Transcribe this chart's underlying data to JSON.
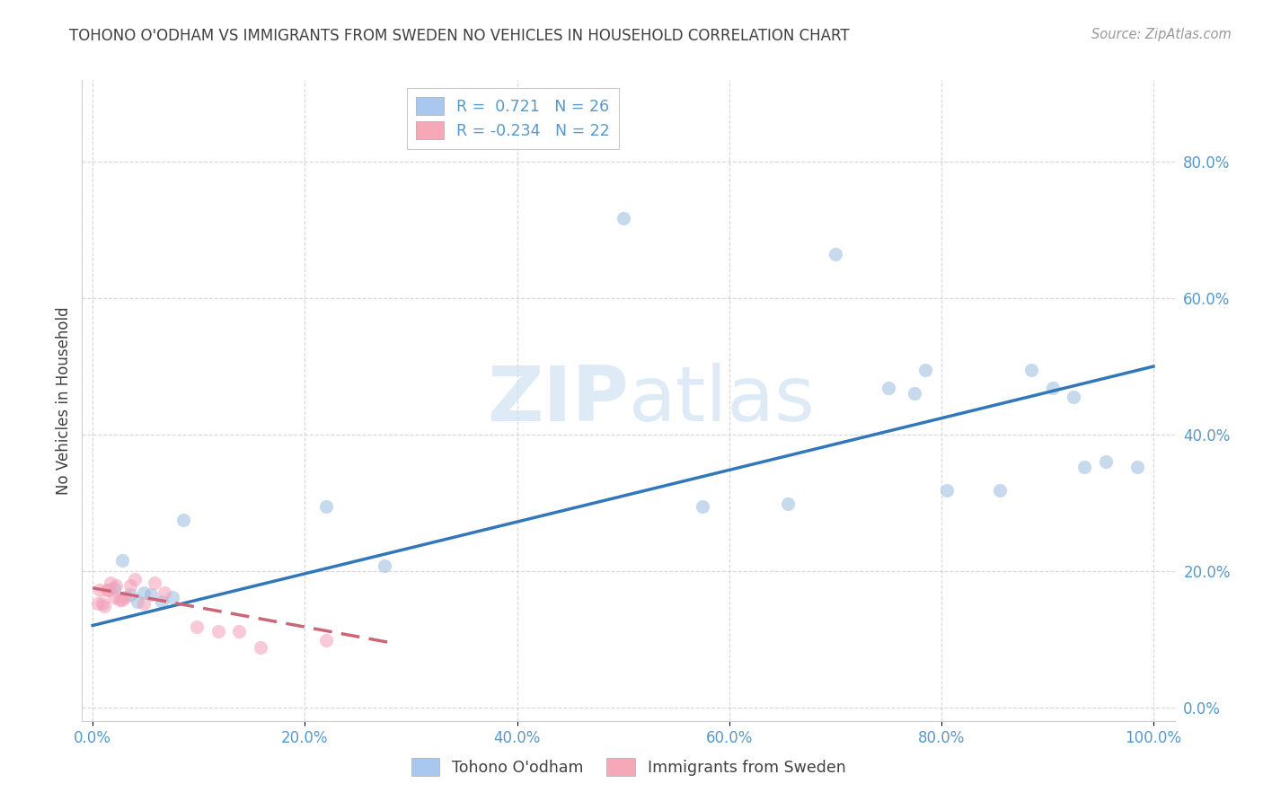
{
  "title": "TOHONO O'ODHAM VS IMMIGRANTS FROM SWEDEN NO VEHICLES IN HOUSEHOLD CORRELATION CHART",
  "source": "Source: ZipAtlas.com",
  "ylabel": "No Vehicles in Household",
  "xlabel": "",
  "xlim": [
    -0.01,
    1.02
  ],
  "ylim": [
    -0.02,
    0.92
  ],
  "yticks": [
    0.0,
    0.2,
    0.4,
    0.6,
    0.8
  ],
  "ytick_labels": [
    "0.0%",
    "20.0%",
    "40.0%",
    "60.0%",
    "80.0%"
  ],
  "xticks": [
    0.0,
    0.2,
    0.4,
    0.6,
    0.8,
    1.0
  ],
  "xtick_labels": [
    "0.0%",
    "20.0%",
    "40.0%",
    "60.0%",
    "80.0%",
    "100.0%"
  ],
  "legend_r1": "R =  0.721   N = 26",
  "legend_r2": "R = -0.234   N = 22",
  "legend_color1": "#a8c8f0",
  "legend_color2": "#f4a8b8",
  "watermark_zip": "ZIP",
  "watermark_atlas": "atlas",
  "blue_scatter_x": [
    0.02,
    0.028,
    0.035,
    0.042,
    0.048,
    0.055,
    0.065,
    0.075,
    0.085,
    0.22,
    0.275,
    0.5,
    0.575,
    0.655,
    0.7,
    0.75,
    0.775,
    0.785,
    0.805,
    0.855,
    0.885,
    0.905,
    0.925,
    0.935,
    0.955,
    0.985
  ],
  "blue_scatter_y": [
    0.175,
    0.215,
    0.165,
    0.155,
    0.168,
    0.165,
    0.155,
    0.162,
    0.275,
    0.295,
    0.208,
    0.718,
    0.295,
    0.298,
    0.665,
    0.468,
    0.46,
    0.495,
    0.318,
    0.318,
    0.495,
    0.468,
    0.455,
    0.352,
    0.36,
    0.352
  ],
  "pink_scatter_x": [
    0.005,
    0.007,
    0.009,
    0.011,
    0.013,
    0.015,
    0.017,
    0.02,
    0.022,
    0.025,
    0.028,
    0.03,
    0.035,
    0.04,
    0.048,
    0.058,
    0.068,
    0.098,
    0.118,
    0.138,
    0.158,
    0.22
  ],
  "pink_scatter_y": [
    0.152,
    0.172,
    0.152,
    0.148,
    0.172,
    0.172,
    0.182,
    0.162,
    0.178,
    0.158,
    0.158,
    0.162,
    0.178,
    0.188,
    0.152,
    0.182,
    0.168,
    0.118,
    0.112,
    0.112,
    0.088,
    0.098
  ],
  "blue_line_x": [
    0.0,
    1.0
  ],
  "blue_line_y": [
    0.12,
    0.5
  ],
  "pink_line_x": [
    0.0,
    0.28
  ],
  "pink_line_y": [
    0.175,
    0.095
  ],
  "scatter_size": 120,
  "scatter_alpha": 0.55,
  "line_width": 2.5,
  "grid_color": "#cccccc",
  "grid_style": "--",
  "bg_color": "#ffffff",
  "title_color": "#404040",
  "axis_label_color": "#404040",
  "tick_color": "#5599cc",
  "blue_line_color": "#3377bb",
  "pink_line_color": "#cc6677",
  "blue_scatter_color": "#99bbdd",
  "pink_scatter_color": "#f4a0b8"
}
